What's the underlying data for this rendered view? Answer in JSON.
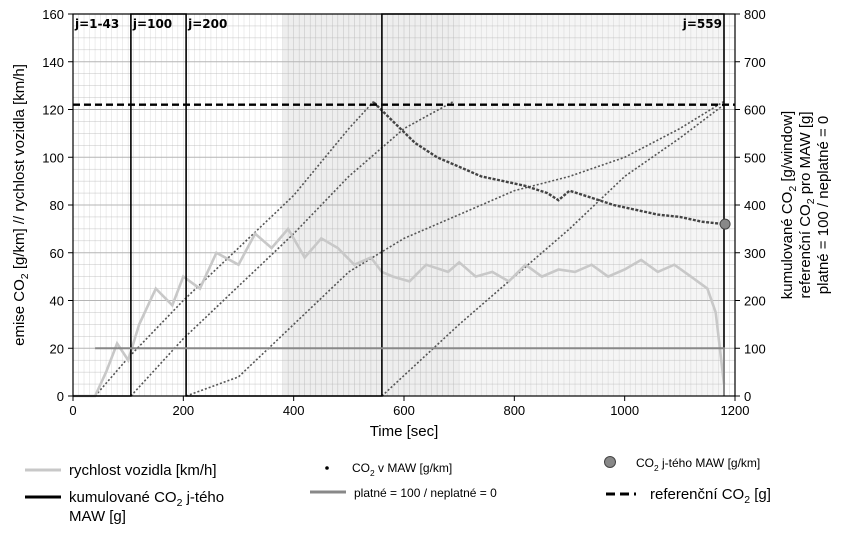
{
  "chart_data": {
    "type": "line",
    "xlabel": "Time [sec]",
    "ylabel_left": "emise CO2 [g/km] // rychlost vozidla [km/h]",
    "ylabel_right": [
      "kumulované CO2 [g/window]",
      "referenční CO2 pro MAW [g]",
      "platné = 100 / neplatné = 0"
    ],
    "xlim": [
      0,
      1200
    ],
    "ylim_left": [
      0,
      160
    ],
    "ylim_right": [
      0,
      800
    ],
    "x_ticks": [
      "0",
      "200",
      "400",
      "600",
      "800",
      "1000",
      "1200"
    ],
    "y_left_ticks": [
      "0",
      "20",
      "40",
      "60",
      "80",
      "100",
      "120",
      "140",
      "160"
    ],
    "y_right_ticks": [
      "0",
      "100",
      "200",
      "300",
      "400",
      "500",
      "600",
      "700",
      "800"
    ],
    "grid": true,
    "window_markers": [
      {
        "label": "j=1-43",
        "x": 0
      },
      {
        "label": "j=100",
        "x": 105
      },
      {
        "label": "j=200",
        "x": 205
      },
      {
        "label": "j=559",
        "x": 1180
      }
    ],
    "series": [
      {
        "name": "rychlost vozidla [km/h]",
        "axis": "left",
        "color": "#c8c8c8",
        "x": [
          0,
          40,
          60,
          80,
          100,
          120,
          150,
          180,
          200,
          230,
          260,
          300,
          330,
          360,
          390,
          420,
          450,
          480,
          510,
          540,
          560,
          580,
          610,
          640,
          680,
          700,
          730,
          760,
          790,
          820,
          850,
          880,
          910,
          940,
          970,
          1000,
          1030,
          1060,
          1090,
          1120,
          1150,
          1165,
          1180
        ],
        "y": [
          0,
          0,
          10,
          22,
          15,
          30,
          45,
          38,
          50,
          45,
          60,
          55,
          68,
          62,
          70,
          58,
          66,
          62,
          55,
          58,
          52,
          50,
          48,
          55,
          52,
          56,
          50,
          52,
          48,
          55,
          50,
          53,
          52,
          55,
          50,
          53,
          57,
          52,
          55,
          50,
          45,
          35,
          5
        ]
      },
      {
        "name": "CO2 v MAW [g/km]",
        "axis": "left",
        "color": "#444444",
        "x": [
          545,
          580,
          620,
          660,
          700,
          740,
          780,
          820,
          860,
          880,
          900,
          940,
          980,
          1020,
          1060,
          1100,
          1140,
          1180
        ],
        "y": [
          123,
          115,
          106,
          100,
          96,
          92,
          90,
          88,
          85,
          82,
          86,
          83,
          80,
          78,
          76,
          75,
          73,
          72
        ]
      },
      {
        "name": "kumulované CO2 j-tého MAW [g]",
        "axis": "right",
        "color": "#000000",
        "x": [
          0,
          105,
          105,
          205,
          205,
          560,
          560,
          1180,
          1180
        ],
        "y": [
          0,
          0,
          800,
          800,
          0,
          0,
          800,
          800,
          0
        ]
      },
      {
        "name": "platné = 100 / neplatné = 0",
        "axis": "right",
        "color": "#888888",
        "x": [
          40,
          100,
          100,
          1180,
          1180
        ],
        "y": [
          100,
          100,
          100,
          100,
          0
        ]
      },
      {
        "name": "referenční CO2 [g]",
        "axis": "right",
        "color": "#000000",
        "dash": true,
        "x": [
          0,
          1200
        ],
        "y": [
          610,
          610
        ]
      },
      {
        "name": "CO2 j-tého MAW [g/km]",
        "axis": "left",
        "color": "#888888",
        "marker": true,
        "x": [
          1182
        ],
        "y": [
          72
        ]
      }
    ],
    "cumulative_curves": [
      {
        "color": "#555555",
        "x": [
          40,
          100,
          200,
          300,
          400,
          500,
          545
        ],
        "y": [
          0,
          80,
          200,
          310,
          420,
          560,
          617
        ]
      },
      {
        "color": "#555555",
        "x": [
          105,
          200,
          300,
          400,
          500,
          600,
          690
        ],
        "y": [
          0,
          120,
          230,
          340,
          460,
          560,
          617
        ]
      },
      {
        "color": "#555555",
        "x": [
          205,
          300,
          400,
          500,
          600,
          700,
          800,
          900,
          1000,
          1100,
          1180
        ],
        "y": [
          0,
          40,
          150,
          260,
          330,
          380,
          430,
          460,
          500,
          560,
          617
        ]
      },
      {
        "color": "#555555",
        "x": [
          560,
          700,
          800,
          900,
          1000,
          1100,
          1180
        ],
        "y": [
          0,
          150,
          250,
          350,
          460,
          540,
          610
        ]
      }
    ],
    "legend": [
      {
        "label": "rychlost vozidla [km/h]",
        "type": "line",
        "color": "#c8c8c8"
      },
      {
        "label": "kumulované CO2 j-tého MAW [g]",
        "type": "line",
        "color": "#000000"
      },
      {
        "label": "CO2 v MAW [g/km]",
        "type": "dot",
        "color": "#000000"
      },
      {
        "label": "platné = 100 / neplatné = 0",
        "type": "line",
        "color": "#888888"
      },
      {
        "label": "CO2 j-tého MAW [g/km]",
        "type": "circle",
        "color": "#888888"
      },
      {
        "label": "referenční CO2 [g]",
        "type": "dash",
        "color": "#000000"
      }
    ]
  }
}
